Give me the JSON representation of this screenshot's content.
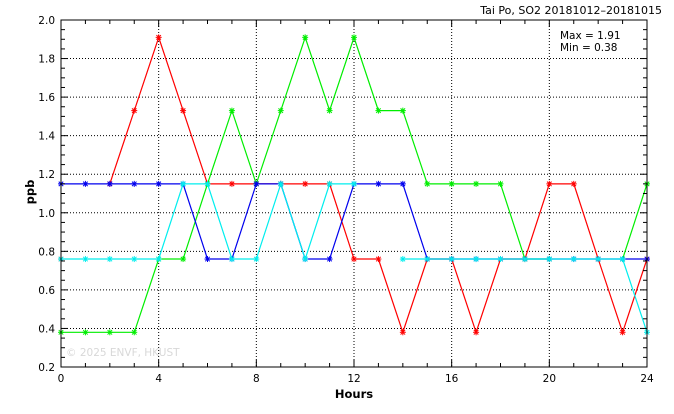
{
  "chart_data": {
    "type": "line",
    "title": "Tai Po, SO2 20181012–20181015",
    "xlabel": "Hours",
    "ylabel": "ppb",
    "xlim": [
      0,
      24
    ],
    "ylim": [
      0.2,
      2.0
    ],
    "x_ticks": [
      "0",
      "4",
      "8",
      "12",
      "16",
      "20",
      "24"
    ],
    "y_ticks": [
      "0.2",
      "0.4",
      "0.6",
      "0.8",
      "1.0",
      "1.2",
      "1.4",
      "1.6",
      "1.8",
      "2.0"
    ],
    "grid": true,
    "stats": [
      "Max = 1.91",
      "Min = 0.38"
    ],
    "watermark": "© 2025  ENVF, HKUST",
    "x": [
      0,
      1,
      2,
      3,
      4,
      5,
      6,
      7,
      8,
      9,
      10,
      11,
      12,
      13,
      14,
      15,
      16,
      17,
      18,
      19,
      20,
      21,
      22,
      23,
      24
    ],
    "series": [
      {
        "color": "#ff0000",
        "values": [
          0.76,
          null,
          1.15,
          1.53,
          1.91,
          1.53,
          1.15,
          1.15,
          1.15,
          1.15,
          1.15,
          1.15,
          0.76,
          0.76,
          0.38,
          0.76,
          0.76,
          0.38,
          0.76,
          0.76,
          1.15,
          1.15,
          0.76,
          0.38,
          0.76
        ]
      },
      {
        "color": "#00ee00",
        "values": [
          0.38,
          0.38,
          0.38,
          0.38,
          0.76,
          0.76,
          1.15,
          1.53,
          1.15,
          1.53,
          1.91,
          1.53,
          1.91,
          1.53,
          1.53,
          1.15,
          1.15,
          1.15,
          1.15,
          0.76,
          0.76,
          null,
          null,
          0.76,
          1.15
        ]
      },
      {
        "color": "#0000ee",
        "values": [
          1.15,
          1.15,
          1.15,
          1.15,
          1.15,
          1.15,
          0.76,
          0.76,
          1.15,
          1.15,
          0.76,
          0.76,
          1.15,
          1.15,
          1.15,
          0.76,
          0.76,
          0.76,
          0.76,
          0.76,
          0.76,
          0.76,
          0.76,
          0.76,
          0.76
        ]
      },
      {
        "color": "#00eeee",
        "values": [
          0.76,
          0.76,
          0.76,
          0.76,
          0.76,
          1.15,
          1.15,
          0.76,
          0.76,
          1.15,
          0.76,
          1.15,
          1.15,
          null,
          0.76,
          0.76,
          0.76,
          0.76,
          0.76,
          0.76,
          0.76,
          0.76,
          0.76,
          0.76,
          0.38
        ]
      }
    ]
  }
}
